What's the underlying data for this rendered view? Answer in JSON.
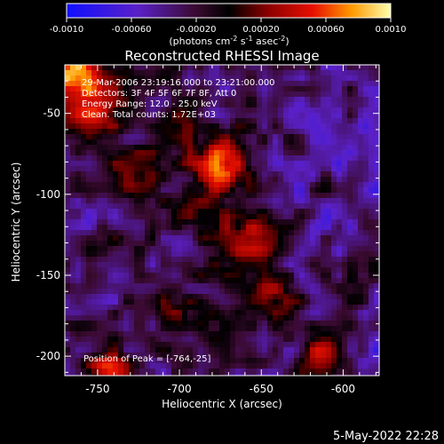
{
  "chart_data": {
    "type": "heatmap",
    "title": "Reconstructed RHESSI Image",
    "xlabel": "Heliocentric X (arcsec)",
    "ylabel": "Heliocentric Y (arcsec)",
    "xlim": [
      -770,
      -578
    ],
    "ylim": [
      -212,
      -20
    ],
    "x_ticks": [
      -750,
      -700,
      -650,
      -600
    ],
    "y_ticks": [
      -50,
      -100,
      -150,
      -200
    ],
    "colorbar": {
      "range": [
        -0.001,
        0.001
      ],
      "tick_values": [
        -0.001,
        -0.0006,
        -0.0002,
        0.0002,
        0.0006,
        0.001
      ],
      "tick_labels": [
        "-0.0010",
        "-0.00060",
        "-0.00020",
        "0.00020",
        "0.00060",
        "0.0010"
      ],
      "units_parts": [
        "(photons cm",
        "-2",
        " s",
        "-1",
        " asec",
        "-2",
        ")"
      ]
    },
    "annotations": [
      "29-Mar-2006 23:19:16.000 to 23:21:00.000",
      "Detectors: 3F 4F 5F 6F 7F 8F, Att 0",
      "Energy Range: 12.0 - 25.0 keV",
      "Clean. Total counts: 1.72E+03"
    ],
    "peak_label": "Position of Peak = [-764,-25]",
    "peak": [
      -764,
      -25
    ],
    "bright_sources": [
      {
        "x": -764,
        "y": -25,
        "value": 0.001
      },
      {
        "x": -752,
        "y": -50,
        "value": 0.0007
      },
      {
        "x": -672,
        "y": -82,
        "value": 0.0009
      },
      {
        "x": -728,
        "y": -85,
        "value": 0.0006
      },
      {
        "x": -657,
        "y": -126,
        "value": 0.0008
      },
      {
        "x": -612,
        "y": -197,
        "value": 0.0008
      },
      {
        "x": -700,
        "y": -172,
        "value": 0.0004
      },
      {
        "x": -744,
        "y": -210,
        "value": 0.0006
      },
      {
        "x": -706,
        "y": -60,
        "value": 0.0004
      },
      {
        "x": -590,
        "y": -150,
        "value": 0.0004
      },
      {
        "x": -640,
        "y": -160,
        "value": 0.0004
      },
      {
        "x": -690,
        "y": -115,
        "value": 0.0003
      }
    ]
  },
  "footer": {
    "timestamp": "5-May-2022 22:28"
  }
}
